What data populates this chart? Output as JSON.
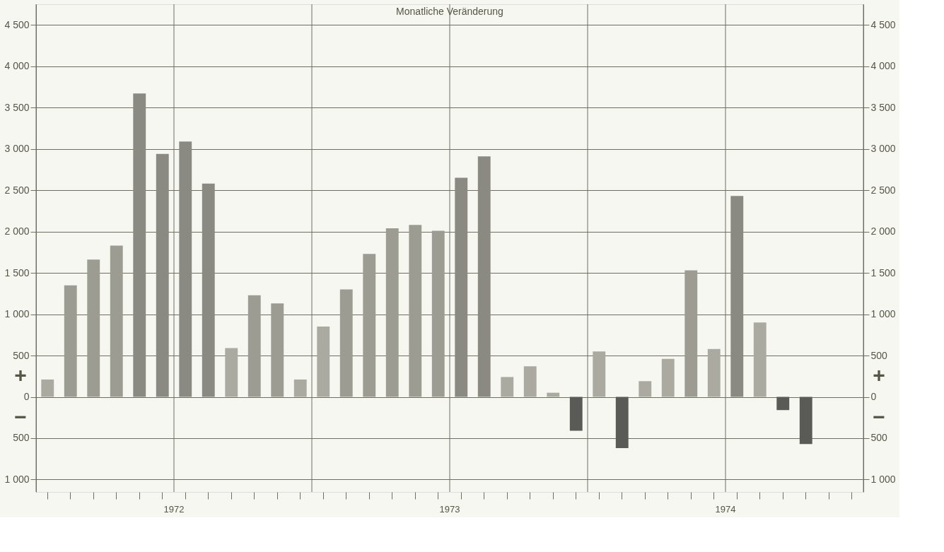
{
  "chart_data": {
    "type": "bar",
    "title": "Monatliche Veränderung",
    "categories": [
      null,
      null,
      null,
      null,
      null,
      null,
      "1972",
      null,
      null,
      null,
      null,
      null,
      null,
      null,
      null,
      null,
      null,
      null,
      "1973",
      null,
      null,
      null,
      null,
      null,
      null,
      null,
      null,
      null,
      null,
      null,
      "1974",
      null,
      null,
      null,
      null,
      null
    ],
    "values": [
      210,
      1350,
      1660,
      1830,
      3670,
      2940,
      3090,
      2580,
      590,
      1230,
      1130,
      210,
      850,
      1300,
      1730,
      2040,
      2080,
      2010,
      2650,
      2910,
      240,
      370,
      50,
      -410,
      550,
      -620,
      190,
      460,
      1530,
      580,
      2430,
      900,
      -160,
      -570,
      null,
      null
    ],
    "colors": [
      "#aaaaa0",
      "#9c9c92",
      "#9c9c92",
      "#9c9c92",
      "#8a8a82",
      "#8a8a82",
      "#8a8a82",
      "#8a8a82",
      "#aaaaa0",
      "#9c9c92",
      "#9c9c92",
      "#aaaaa0",
      "#aaaaa0",
      "#9c9c92",
      "#9c9c92",
      "#9c9c92",
      "#9c9c92",
      "#9c9c92",
      "#8a8a82",
      "#8a8a82",
      "#aaaaa0",
      "#aaaaa0",
      "#aaaaa0",
      "#5a5a56",
      "#aaaaa0",
      "#5a5a56",
      "#aaaaa0",
      "#aaaaa0",
      "#9c9c92",
      "#aaaaa0",
      "#8a8a82",
      "#aaaaa0",
      "#5a5a56",
      "#5a5a56",
      "#aaaaa0",
      "#aaaaa0"
    ],
    "ylim": [
      -1150,
      4750
    ],
    "yticks": [
      {
        "value": -1000,
        "label": "1 000"
      },
      {
        "value": -500,
        "label": "500"
      },
      0,
      500,
      {
        "value": 1000,
        "label": "1 000"
      },
      {
        "value": 1500,
        "label": "1 500"
      },
      {
        "value": 2000,
        "label": "2 000"
      },
      {
        "value": 2500,
        "label": "2 500"
      },
      {
        "value": 3000,
        "label": "3 000"
      },
      {
        "value": 3500,
        "label": "3 500"
      },
      {
        "value": 4000,
        "label": "4 000"
      },
      {
        "value": 4500,
        "label": "4 500"
      }
    ],
    "y2lim": [
      -1150,
      4750
    ],
    "y2ticks": [
      {
        "value": -1000,
        "label": "1 000"
      },
      {
        "value": -500,
        "label": "500"
      },
      0,
      500,
      {
        "value": 1000,
        "label": "1 000"
      },
      {
        "value": 1500,
        "label": "1 500"
      },
      {
        "value": 2000,
        "label": "2 000"
      },
      {
        "value": 2500,
        "label": "2 500"
      },
      {
        "value": 3000,
        "label": "3 000"
      },
      {
        "value": 3500,
        "label": "3 500"
      },
      {
        "value": 4000,
        "label": "4 000"
      },
      {
        "value": 4500,
        "label": "4 500"
      }
    ],
    "annotations": [
      "+",
      "−"
    ],
    "grid": true
  }
}
